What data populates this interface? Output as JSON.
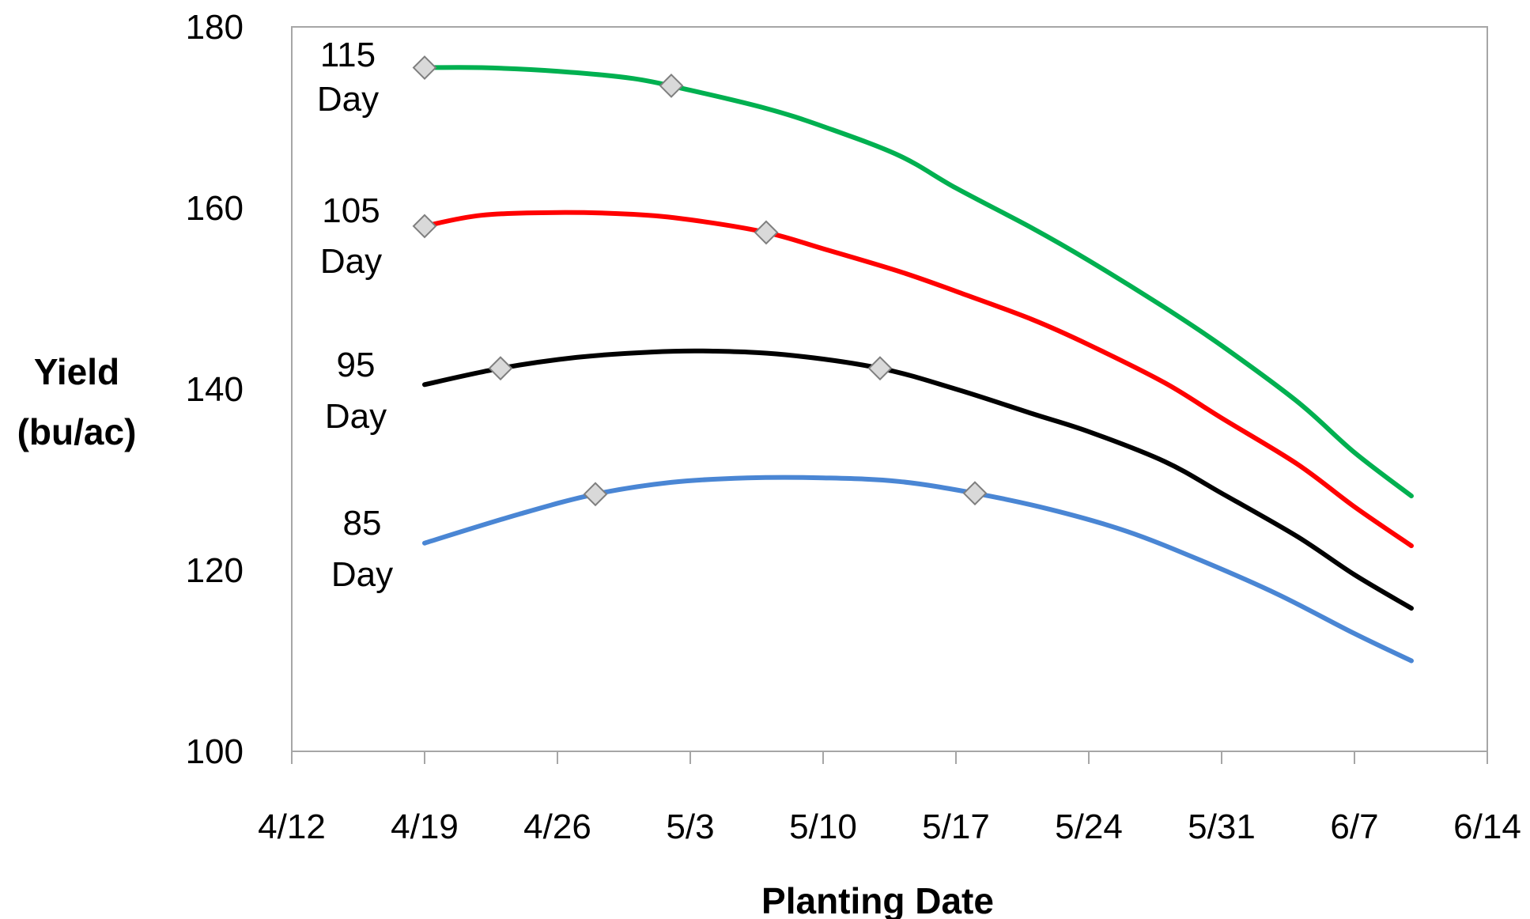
{
  "chart_data": {
    "type": "line",
    "xlabel": "Planting Date",
    "ylabel": [
      "Yield",
      "(bu/ac)"
    ],
    "ylim": [
      100,
      180
    ],
    "yticks": [
      100,
      120,
      140,
      160,
      180
    ],
    "xlim": [
      "4/12",
      "6/14"
    ],
    "xticks": [
      "4/12",
      "4/19",
      "4/26",
      "5/3",
      "5/10",
      "5/17",
      "5/24",
      "5/31",
      "6/7",
      "6/14"
    ],
    "grid": false,
    "legend": "none",
    "series": [
      {
        "name": [
          "115",
          "Day"
        ],
        "color": "#00b050",
        "points": [
          {
            "x": "4/19",
            "y": 175.5
          },
          {
            "x": "4/22",
            "y": 175.5
          },
          {
            "x": "4/26",
            "y": 175.1
          },
          {
            "x": "4/30",
            "y": 174.3
          },
          {
            "x": "5/3",
            "y": 173.0
          },
          {
            "x": "5/7",
            "y": 171.0
          },
          {
            "x": "5/10",
            "y": 169.0
          },
          {
            "x": "5/14",
            "y": 165.8
          },
          {
            "x": "5/17",
            "y": 162.2
          },
          {
            "x": "5/21",
            "y": 157.8
          },
          {
            "x": "5/24",
            "y": 154.2
          },
          {
            "x": "5/28",
            "y": 149.0
          },
          {
            "x": "5/31",
            "y": 144.8
          },
          {
            "x": "6/4",
            "y": 138.6
          },
          {
            "x": "6/7",
            "y": 133.0
          },
          {
            "x": "6/10",
            "y": 128.2
          }
        ],
        "markers": [
          {
            "x": "4/19",
            "y": 175.5
          },
          {
            "x": "5/2",
            "y": 173.5
          }
        ]
      },
      {
        "name": [
          "105",
          "Day"
        ],
        "color": "#ff0000",
        "points": [
          {
            "x": "4/19",
            "y": 158.0
          },
          {
            "x": "4/22",
            "y": 159.2
          },
          {
            "x": "4/26",
            "y": 159.5
          },
          {
            "x": "4/30",
            "y": 159.3
          },
          {
            "x": "5/3",
            "y": 158.7
          },
          {
            "x": "5/7",
            "y": 157.3
          },
          {
            "x": "5/10",
            "y": 155.5
          },
          {
            "x": "5/14",
            "y": 153.0
          },
          {
            "x": "5/17",
            "y": 150.8
          },
          {
            "x": "5/21",
            "y": 147.7
          },
          {
            "x": "5/24",
            "y": 144.9
          },
          {
            "x": "5/28",
            "y": 140.7
          },
          {
            "x": "5/31",
            "y": 136.8
          },
          {
            "x": "6/4",
            "y": 131.7
          },
          {
            "x": "6/7",
            "y": 127.0
          },
          {
            "x": "6/10",
            "y": 122.7
          }
        ],
        "markers": [
          {
            "x": "4/19",
            "y": 158.0
          },
          {
            "x": "5/7",
            "y": 157.3
          }
        ]
      },
      {
        "name": [
          "95",
          "Day"
        ],
        "color": "#000000",
        "points": [
          {
            "x": "4/19",
            "y": 140.5
          },
          {
            "x": "4/23",
            "y": 142.3
          },
          {
            "x": "4/27",
            "y": 143.5
          },
          {
            "x": "5/1",
            "y": 144.1
          },
          {
            "x": "5/4",
            "y": 144.2
          },
          {
            "x": "5/8",
            "y": 143.8
          },
          {
            "x": "5/13",
            "y": 142.3
          },
          {
            "x": "5/17",
            "y": 140.0
          },
          {
            "x": "5/21",
            "y": 137.3
          },
          {
            "x": "5/24",
            "y": 135.3
          },
          {
            "x": "5/28",
            "y": 132.0
          },
          {
            "x": "5/31",
            "y": 128.5
          },
          {
            "x": "6/4",
            "y": 123.7
          },
          {
            "x": "6/7",
            "y": 119.5
          },
          {
            "x": "6/10",
            "y": 115.8
          }
        ],
        "markers": [
          {
            "x": "4/23",
            "y": 142.3
          },
          {
            "x": "5/13",
            "y": 142.3
          }
        ]
      },
      {
        "name": [
          "85",
          "Day"
        ],
        "color": "#4a86d4",
        "points": [
          {
            "x": "4/19",
            "y": 123.0
          },
          {
            "x": "4/24",
            "y": 126.2
          },
          {
            "x": "4/28",
            "y": 128.4
          },
          {
            "x": "5/2",
            "y": 129.7
          },
          {
            "x": "5/6",
            "y": 130.2
          },
          {
            "x": "5/10",
            "y": 130.2
          },
          {
            "x": "5/14",
            "y": 129.8
          },
          {
            "x": "5/18",
            "y": 128.5
          },
          {
            "x": "5/22",
            "y": 126.7
          },
          {
            "x": "5/26",
            "y": 124.3
          },
          {
            "x": "5/30",
            "y": 121.0
          },
          {
            "x": "6/3",
            "y": 117.3
          },
          {
            "x": "6/7",
            "y": 113.0
          },
          {
            "x": "6/10",
            "y": 110.0
          }
        ],
        "markers": [
          {
            "x": "4/28",
            "y": 128.4
          },
          {
            "x": "5/18",
            "y": 128.5
          }
        ]
      }
    ]
  }
}
